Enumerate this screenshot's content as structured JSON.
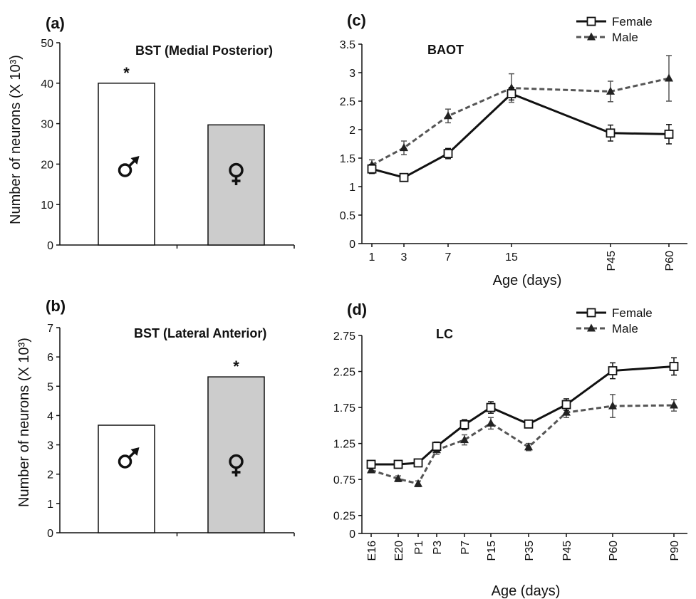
{
  "colors": {
    "axis": "#111111",
    "female_line": "#111111",
    "male_line": "#555555",
    "bar_male": "#ffffff",
    "bar_female": "#cccccc"
  },
  "chart_data": [
    {
      "panel": "(a)",
      "type": "bar",
      "title": "BST (Medial Posterior)",
      "ylabel": "Number of neurons (X 10³)",
      "ylim": [
        0,
        50
      ],
      "yticks": [
        "0",
        "10",
        "20",
        "30",
        "40",
        "50"
      ],
      "categories": [
        "male-symbol",
        "female-symbol"
      ],
      "values": [
        40,
        29.7
      ],
      "significance": [
        "*",
        ""
      ]
    },
    {
      "panel": "(b)",
      "type": "bar",
      "title": "BST (Lateral Anterior)",
      "ylabel": "Number of neurons (X 10³)",
      "ylim": [
        0,
        7
      ],
      "yticks": [
        "0",
        "1",
        "2",
        "3",
        "4",
        "5",
        "6",
        "7"
      ],
      "categories": [
        "male-symbol",
        "female-symbol"
      ],
      "values": [
        3.67,
        5.32
      ],
      "significance": [
        "",
        "*"
      ]
    },
    {
      "panel": "(c)",
      "type": "line",
      "title": "BAOT",
      "xlabel": "Age (days)",
      "ylim": [
        0,
        3.5
      ],
      "yticks": [
        "0",
        "0.5",
        "1",
        "1.5",
        "2",
        "2.5",
        "3",
        "3.5"
      ],
      "x": [
        "1",
        "3",
        "7",
        "15",
        "P45",
        "P60"
      ],
      "legend": {
        "position": "top-right"
      },
      "series": [
        {
          "name": "Female",
          "values": [
            1.31,
            1.16,
            1.58,
            2.63,
            1.94,
            1.92
          ],
          "errors": [
            0.08,
            0.05,
            0.09,
            0.11,
            0.14,
            0.17
          ]
        },
        {
          "name": "Male",
          "values": [
            1.38,
            1.68,
            2.24,
            2.73,
            2.67,
            2.9
          ],
          "errors": [
            0.09,
            0.12,
            0.12,
            0.25,
            0.18,
            0.4
          ]
        }
      ]
    },
    {
      "panel": "(d)",
      "type": "line",
      "title": "LC",
      "xlabel": "Age (days)",
      "ylim": [
        0,
        2.75
      ],
      "yticks": [
        "0",
        "0.25",
        "0.75",
        "1.25",
        "1.75",
        "2.25",
        "2.75"
      ],
      "x": [
        "E16",
        "E20",
        "P1",
        "P3",
        "P7",
        "P15",
        "P35",
        "P45",
        "P60",
        "P90"
      ],
      "legend": {
        "position": "top-right"
      },
      "series": [
        {
          "name": "Female",
          "values": [
            0.96,
            0.96,
            0.98,
            1.21,
            1.51,
            1.75,
            1.52,
            1.79,
            2.26,
            2.32
          ],
          "errors": [
            0.04,
            0.05,
            0.05,
            0.06,
            0.07,
            0.08,
            0.05,
            0.08,
            0.11,
            0.12
          ]
        },
        {
          "name": "Male",
          "values": [
            0.88,
            0.76,
            0.69,
            1.16,
            1.3,
            1.53,
            1.2,
            1.68,
            1.77,
            1.78
          ],
          "errors": [
            0.03,
            0.04,
            0.04,
            0.06,
            0.07,
            0.08,
            0.05,
            0.07,
            0.16,
            0.08
          ]
        }
      ]
    }
  ]
}
